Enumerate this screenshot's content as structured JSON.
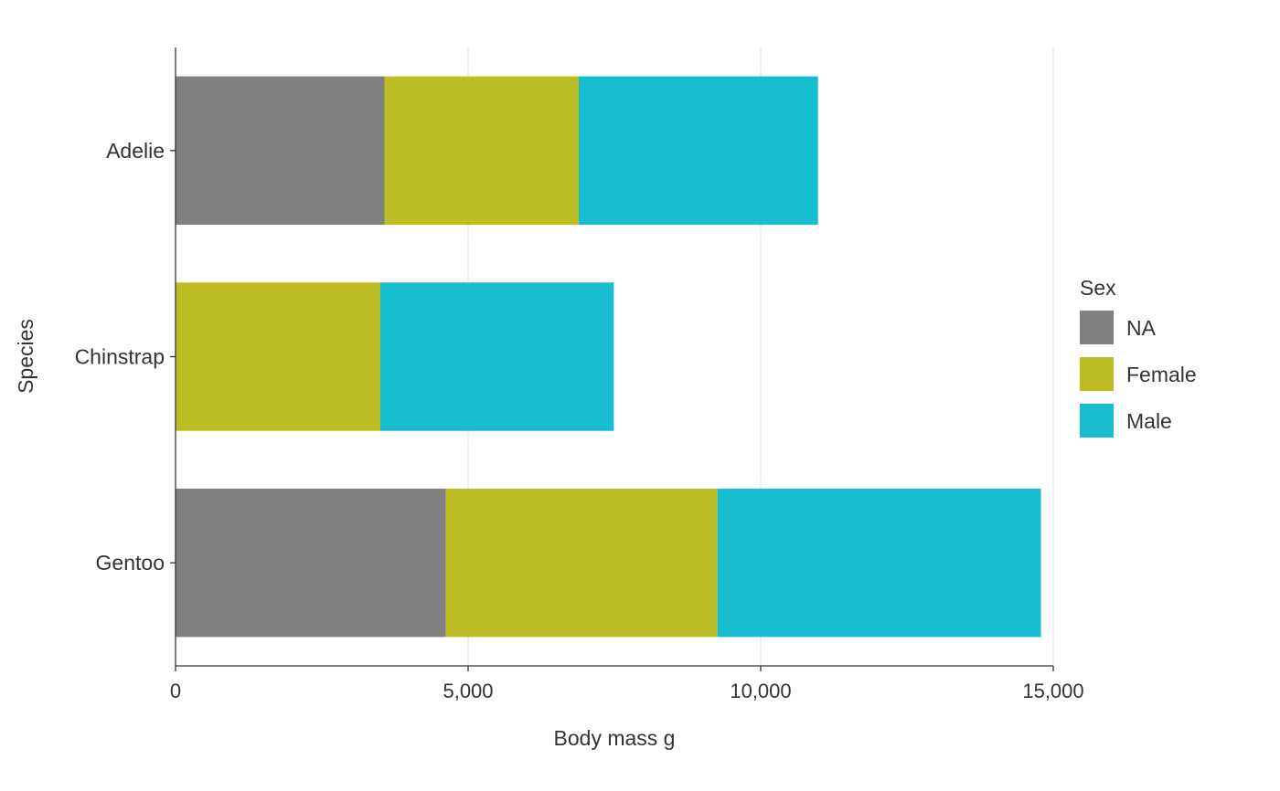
{
  "chart_data": {
    "type": "bar",
    "orientation": "horizontal",
    "stacked": true,
    "categories": [
      "Adelie",
      "Chinstrap",
      "Gentoo"
    ],
    "series": [
      {
        "name": "NA",
        "color": "#808080",
        "values": [
          3570,
          0,
          4620
        ]
      },
      {
        "name": "Female",
        "color": "#bcbd22",
        "values": [
          3320,
          3500,
          4640
        ]
      },
      {
        "name": "Male",
        "color": "#17becf",
        "values": [
          4090,
          3990,
          5530
        ]
      }
    ],
    "xlabel": "Body mass g",
    "ylabel": "Species",
    "xlim": [
      0,
      15000
    ],
    "x_ticks": [
      0,
      5000,
      10000,
      15000
    ],
    "x_tick_labels": [
      "0",
      "5,000",
      "10,000",
      "15,000"
    ],
    "grid": "vertical",
    "legend": {
      "title": "Sex",
      "position": "right"
    }
  }
}
